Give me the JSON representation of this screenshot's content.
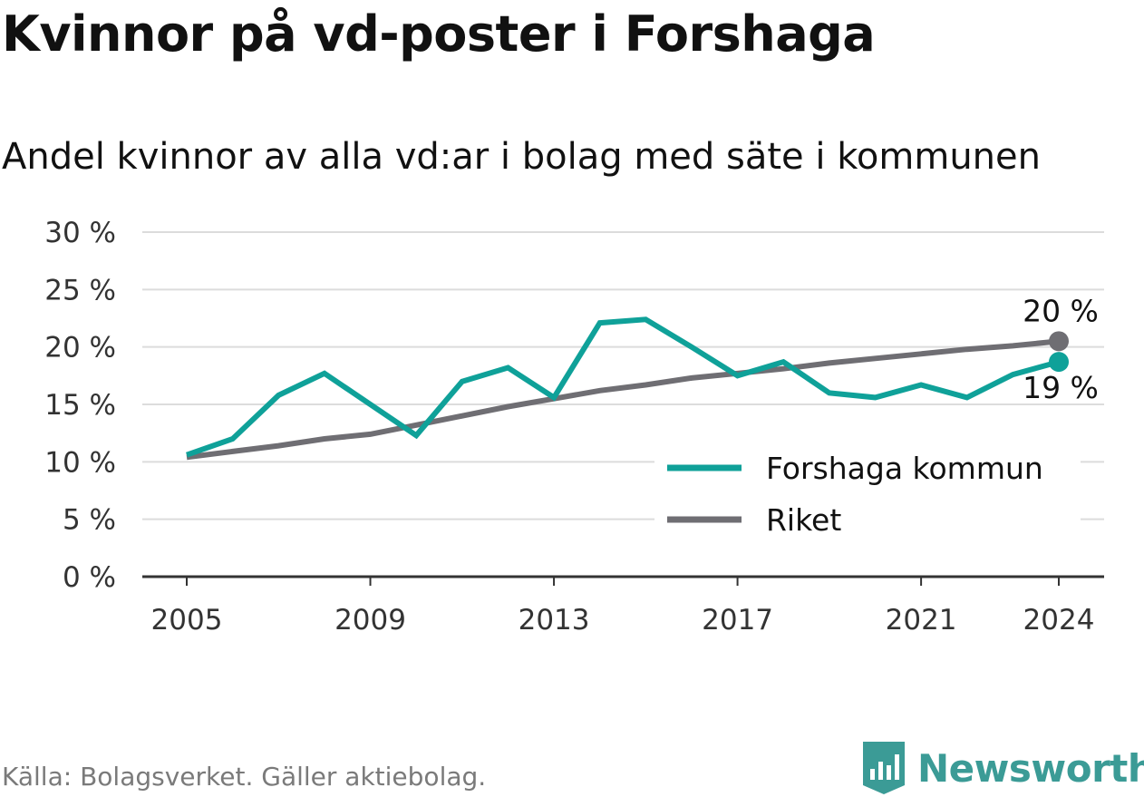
{
  "header": {
    "title": "Kvinnor på vd-poster i Forshaga",
    "subtitle": "Andel kvinnor av alla vd:ar i bolag med säte i kommunen"
  },
  "footer": {
    "source": "Källa: Bolagsverket. Gäller aktiebolag.",
    "brand": "Newsworthy",
    "brand_icon": "bar-chart-bookmark-icon"
  },
  "colors": {
    "forshaga": "#0fa199",
    "riket": "#6f6e73",
    "grid": "#dcdcdc",
    "axis": "#333333",
    "brand": "#3b9b96"
  },
  "chart_data": {
    "type": "line",
    "x": [
      2005,
      2006,
      2007,
      2008,
      2009,
      2010,
      2011,
      2012,
      2013,
      2014,
      2015,
      2016,
      2017,
      2018,
      2019,
      2020,
      2021,
      2022,
      2023,
      2024
    ],
    "series": [
      {
        "name": "Forshaga kommun",
        "color": "#0fa199",
        "values": [
          10.6,
          12.0,
          15.8,
          17.7,
          15.0,
          12.3,
          17.0,
          18.2,
          15.6,
          22.1,
          22.4,
          20.0,
          17.5,
          18.7,
          16.0,
          15.6,
          16.7,
          15.6,
          17.6,
          18.7
        ],
        "end_label": "19 %"
      },
      {
        "name": "Riket",
        "color": "#6f6e73",
        "values": [
          10.4,
          10.9,
          11.4,
          12.0,
          12.4,
          13.2,
          14.0,
          14.8,
          15.5,
          16.2,
          16.7,
          17.3,
          17.7,
          18.1,
          18.6,
          19.0,
          19.4,
          19.8,
          20.1,
          20.5
        ],
        "end_label": "20 %"
      }
    ],
    "xticks": [
      2005,
      2009,
      2013,
      2017,
      2021,
      2024
    ],
    "xtick_labels": [
      "2005",
      "2009",
      "2013",
      "2017",
      "2021",
      "2024"
    ],
    "yticks": [
      0,
      5,
      10,
      15,
      20,
      25,
      30
    ],
    "ytick_labels": [
      "0 %",
      "5 %",
      "10 %",
      "15 %",
      "20 %",
      "25 %",
      "30 %"
    ],
    "ylim": [
      0,
      30
    ],
    "xlim": [
      2004.0,
      2025.0
    ],
    "grid": true,
    "legend_position": "bottom-right",
    "title": "Kvinnor på vd-poster i Forshaga",
    "subtitle": "Andel kvinnor av alla vd:ar i bolag med säte i kommunen",
    "xlabel": "",
    "ylabel": ""
  }
}
